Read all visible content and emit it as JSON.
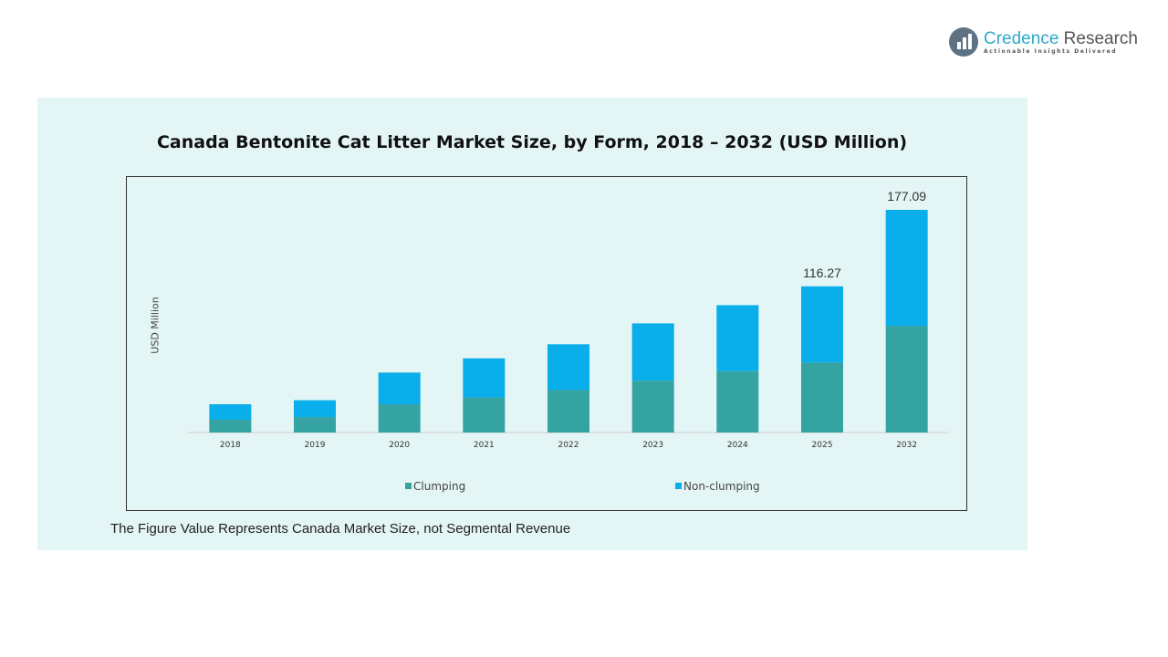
{
  "logo": {
    "name_part1": "Credence",
    "name_part2": " Research",
    "tagline": "Actionable Insights Delivered"
  },
  "note": "The Figure Value Represents Canada Market Size, not Segmental Revenue",
  "colors": {
    "clumping": "#36a3a3",
    "non_clumping": "#0aaeea",
    "panel": "#e4f5f6"
  },
  "chart_data": {
    "type": "bar",
    "stacked": true,
    "title": "Canada Bentonite Cat Litter Market Size, by Form, 2018 – 2032 (USD Million)",
    "xlabel": "",
    "ylabel": "USD Million",
    "categories": [
      "2018",
      "2019",
      "2020",
      "2021",
      "2022",
      "2023",
      "2024",
      "2025",
      "2032"
    ],
    "series": [
      {
        "name": "Clumping",
        "values": [
          10.2,
          12.3,
          22.5,
          27.9,
          33.8,
          41.3,
          48.8,
          55.7,
          84.9
        ]
      },
      {
        "name": "Non-clumping",
        "values": [
          12.3,
          13.4,
          25.2,
          31.1,
          36.4,
          45.5,
          52.5,
          60.57,
          92.19
        ]
      }
    ],
    "data_labels": {
      "2025": "116.27",
      "2032": "177.09"
    },
    "ylim": [
      0,
      177.09
    ],
    "grid": false,
    "legend": "bottom"
  }
}
